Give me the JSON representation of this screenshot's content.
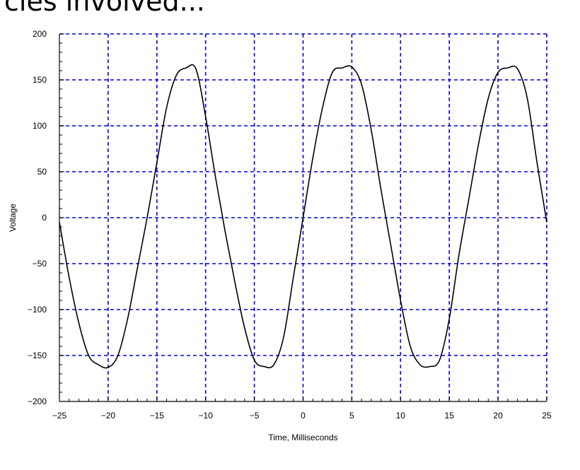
{
  "header": {
    "text": "cles involved..."
  },
  "chart_data": {
    "type": "line",
    "title": "",
    "xlabel": "Time, Milliseconds",
    "ylabel": "Voltage",
    "xlim": [
      -25,
      25
    ],
    "ylim": [
      -200,
      200
    ],
    "xticks": [
      -25,
      -20,
      -15,
      -10,
      -5,
      0,
      5,
      10,
      15,
      20,
      25
    ],
    "yticks": [
      -200,
      -150,
      -100,
      -50,
      0,
      50,
      100,
      150,
      200
    ],
    "xtick_labels": [
      "−25",
      "−20",
      "−15",
      "−10",
      "−5",
      "0",
      "5",
      "10",
      "15",
      "20",
      "25"
    ],
    "ytick_labels": [
      "−200",
      "−150",
      "−100",
      "−50",
      "0",
      "50",
      "100",
      "150",
      "200"
    ],
    "grid": true,
    "grid_color": "#0000dd",
    "line_color": "#000000",
    "series": [
      {
        "x": [
          -25,
          -24,
          -23,
          -22,
          -21,
          -20,
          -19,
          -18,
          -17,
          -16,
          -15,
          -14,
          -13,
          -12,
          -11,
          -10,
          -9,
          -8,
          -7,
          -6,
          -5,
          -4,
          -3,
          -2,
          -1,
          0,
          1,
          2,
          3,
          4,
          5,
          6,
          7,
          8,
          9,
          10,
          11,
          12,
          13,
          14,
          15,
          16,
          17,
          18,
          19,
          20,
          21,
          22,
          23,
          24,
          25
        ],
        "values": [
          -5,
          -65,
          -115,
          -150,
          -160,
          -163,
          -150,
          -110,
          -55,
          0,
          60,
          120,
          155,
          163,
          162,
          110,
          45,
          -15,
          -70,
          -120,
          -155,
          -162,
          -160,
          -130,
          -65,
          0,
          65,
          120,
          158,
          163,
          164,
          145,
          95,
          30,
          -30,
          -90,
          -140,
          -160,
          -162,
          -155,
          -110,
          -40,
          20,
          80,
          130,
          158,
          163,
          162,
          130,
          60,
          -5
        ]
      }
    ]
  }
}
